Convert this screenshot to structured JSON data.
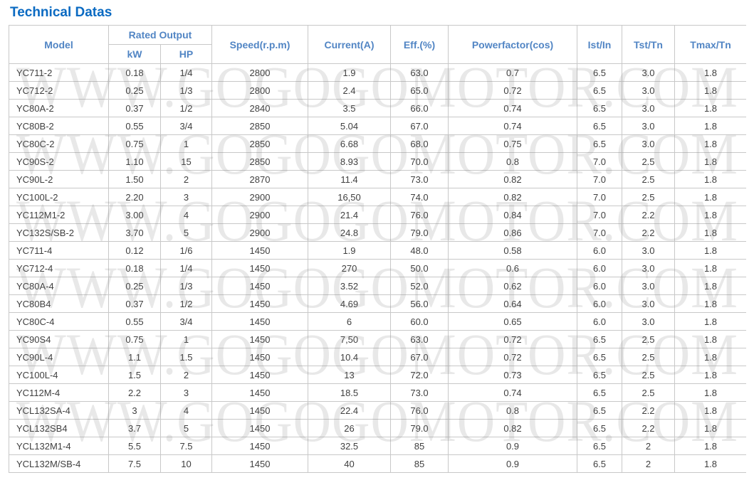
{
  "page": {
    "title": "Technical Datas"
  },
  "colors": {
    "title_blue": "#0a6ac2",
    "header_blue": "#5185c4",
    "border": "#c8c8c8",
    "cell_text": "#3f3f3f"
  },
  "watermark": {
    "text": "WWW.GOGOGOMOTOR.COM",
    "repeat": 6
  },
  "table": {
    "header": {
      "model": "Model",
      "rated_output": "Rated Output",
      "kw": "kW",
      "hp": "HP",
      "speed": "Speed(r.p.m)",
      "current": "Current(A)",
      "eff": "Eff.(%)",
      "powerfactor": "Powerfactor(cos)",
      "ist_in": "Ist/In",
      "tst_tn": "Tst/Tn",
      "tmax_tn": "Tmax/Tn"
    },
    "rows": [
      [
        "YC711-2",
        "0.18",
        "1/4",
        "2800",
        "1.9",
        "63.0",
        "0.7",
        "6.5",
        "3.0",
        "1.8"
      ],
      [
        "YC712-2",
        "0.25",
        "1/3",
        "2800",
        "2.4",
        "65.0",
        "0.72",
        "6.5",
        "3.0",
        "1.8"
      ],
      [
        "YC80A-2",
        "0.37",
        "1/2",
        "2840",
        "3.5",
        "66.0",
        "0.74",
        "6.5",
        "3.0",
        "1.8"
      ],
      [
        "YC80B-2",
        "0.55",
        "3/4",
        "2850",
        "5.04",
        "67.0",
        "0.74",
        "6.5",
        "3.0",
        "1.8"
      ],
      [
        "YC80C-2",
        "0.75",
        "1",
        "2850",
        "6.68",
        "68.0",
        "0.75",
        "6.5",
        "3.0",
        "1.8"
      ],
      [
        "YC90S-2",
        "1.10",
        "15",
        "2850",
        "8.93",
        "70.0",
        "0.8",
        "7.0",
        "2.5",
        "1.8"
      ],
      [
        "YC90L-2",
        "1.50",
        "2",
        "2870",
        "11.4",
        "73.0",
        "0.82",
        "7.0",
        "2.5",
        "1.8"
      ],
      [
        "YC100L-2",
        "2.20",
        "3",
        "2900",
        "16,50",
        "74.0",
        "0.82",
        "7.0",
        "2.5",
        "1.8"
      ],
      [
        "YC112M1-2",
        "3.00",
        "4",
        "2900",
        "21.4",
        "76.0",
        "0.84",
        "7.0",
        "2.2",
        "1.8"
      ],
      [
        "YC132S/SB-2",
        "3.70",
        "5",
        "2900",
        "24.8",
        "79.0",
        "0.86",
        "7.0",
        "2.2",
        "1.8"
      ],
      [
        "YC711-4",
        "0.12",
        "1/6",
        "1450",
        "1.9",
        "48.0",
        "0.58",
        "6.0",
        "3.0",
        "1.8"
      ],
      [
        "YC712-4",
        "0.18",
        "1/4",
        "1450",
        "270",
        "50.0",
        "0.6",
        "6.0",
        "3.0",
        "1.8"
      ],
      [
        "YC80A-4",
        "0.25",
        "1/3",
        "1450",
        "3.52",
        "52.0",
        "0.62",
        "6.0",
        "3.0",
        "1.8"
      ],
      [
        "YC80B4",
        "0.37",
        "1/2",
        "1450",
        "4.69",
        "56.0",
        "0.64",
        "6.0",
        "3.0",
        "1.8"
      ],
      [
        "YC80C-4",
        "0.55",
        "3/4",
        "1450",
        "6",
        "60.0",
        "0.65",
        "6.0",
        "3.0",
        "1.8"
      ],
      [
        "YC90S4",
        "0.75",
        "1",
        "1450",
        "7,50",
        "63.0",
        "0.72",
        "6.5",
        "2.5",
        "1.8"
      ],
      [
        "YC90L-4",
        "1.1",
        "1.5",
        "1450",
        "10.4",
        "67.0",
        "0.72",
        "6.5",
        "2.5",
        "1.8"
      ],
      [
        "YC100L-4",
        "1.5",
        "2",
        "1450",
        "13",
        "72.0",
        "0.73",
        "6.5",
        "2.5",
        "1.8"
      ],
      [
        "YC112M-4",
        "2.2",
        "3",
        "1450",
        "18.5",
        "73.0",
        "0.74",
        "6.5",
        "2.5",
        "1.8"
      ],
      [
        "YCL132SA-4",
        "3",
        "4",
        "1450",
        "22.4",
        "76.0",
        "0.8",
        "6.5",
        "2.2",
        "1.8"
      ],
      [
        "YCL132SB4",
        "3.7",
        "5",
        "1450",
        "26",
        "79.0",
        "0.82",
        "6.5",
        "2.2",
        "1.8"
      ],
      [
        "YCL132M1-4",
        "5.5",
        "7.5",
        "1450",
        "32.5",
        "85",
        "0.9",
        "6.5",
        "2",
        "1.8"
      ],
      [
        "YCL132M/SB-4",
        "7.5",
        "10",
        "1450",
        "40",
        "85",
        "0.9",
        "6.5",
        "2",
        "1.8"
      ]
    ]
  }
}
